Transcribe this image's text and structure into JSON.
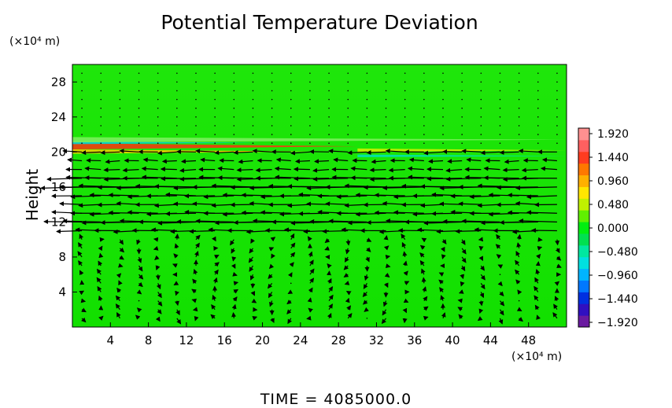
{
  "chart_data": {
    "type": "heatmap",
    "title": "Potential Temperature Deviation",
    "ylabel": "Height",
    "y_unit": "(×10⁴ m)",
    "x_unit": "(×10⁴ m)",
    "xlim": [
      0,
      52
    ],
    "ylim": [
      0,
      30
    ],
    "x_ticks": [
      "4",
      "8",
      "12",
      "16",
      "20",
      "24",
      "28",
      "32",
      "36",
      "40",
      "44",
      "48"
    ],
    "y_ticks": [
      "4",
      "8",
      "12",
      "16",
      "20",
      "24",
      "28"
    ],
    "colorbar": {
      "min": -1.92,
      "max": 1.92,
      "tick_labels": [
        "1.920",
        "1.440",
        "0.960",
        "0.480",
        "0.000",
        "−0.480",
        "−0.960",
        "−1.440",
        "−1.920"
      ],
      "colors": [
        "#6a1aa0",
        "#3010c0",
        "#0030e0",
        "#0078ff",
        "#00b4ff",
        "#00e0e0",
        "#00e8a0",
        "#00e050",
        "#00ee10",
        "#60f000",
        "#c0f000",
        "#ffe600",
        "#ffb000",
        "#ff7800",
        "#ff3c20",
        "#ff6060",
        "#ff9090"
      ]
    },
    "background_value": 0.0,
    "features": [
      {
        "type": "band",
        "y_range": [
          20.3,
          21.0
        ],
        "x_range": [
          0,
          30
        ],
        "value": 1.6,
        "color": "#ff3010"
      },
      {
        "type": "band",
        "y_range": [
          20.9,
          21.2
        ],
        "x_range": [
          0,
          20
        ],
        "value": -0.5,
        "color": "#00d0e0"
      },
      {
        "type": "band",
        "y_range": [
          19.8,
          20.3
        ],
        "x_range": [
          0,
          25
        ],
        "value": 0.9,
        "color": "#ffd000"
      },
      {
        "type": "band",
        "y_range": [
          20.0,
          20.4
        ],
        "x_range": [
          30,
          52
        ],
        "value": 0.6,
        "color": "#d8f000"
      },
      {
        "type": "band",
        "y_range": [
          19.4,
          19.7
        ],
        "x_range": [
          30,
          52
        ],
        "value": -0.4,
        "color": "#00e0c0"
      },
      {
        "type": "band",
        "y_range": [
          21.1,
          21.7
        ],
        "x_range": [
          0,
          52
        ],
        "value": 0.2,
        "color": "#80f060"
      }
    ],
    "wind_layers": [
      {
        "y": 20.0,
        "u": -1.2
      },
      {
        "y": 19.0,
        "u": -0.9
      },
      {
        "y": 18.0,
        "u": -1.0
      },
      {
        "y": 17.0,
        "u": -2.2
      },
      {
        "y": 16.0,
        "u": -2.6
      },
      {
        "y": 15.0,
        "u": -1.9
      },
      {
        "y": 14.0,
        "u": -1.4
      },
      {
        "y": 13.0,
        "u": -1.9
      },
      {
        "y": 12.0,
        "u": -2.4
      },
      {
        "y": 11.0,
        "u": -1.6
      }
    ],
    "time_label": "TIME  =  4085000.0"
  }
}
